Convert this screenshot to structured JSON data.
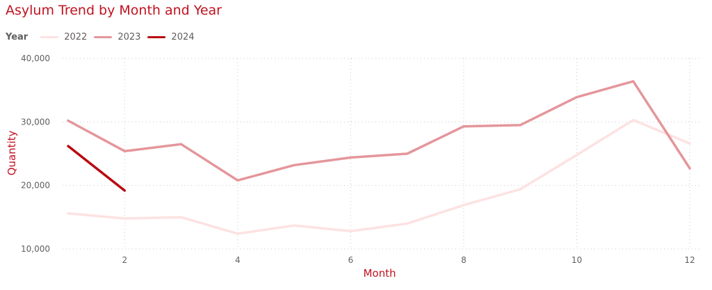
{
  "chart_data": {
    "type": "line",
    "title": "Asylum Trend by Month and Year",
    "xlabel": "Month",
    "ylabel": "Quantity",
    "legend_title": "Year",
    "legend_position": "top-left",
    "grid": true,
    "x": [
      1,
      2,
      3,
      4,
      5,
      6,
      7,
      8,
      9,
      10,
      11,
      12
    ],
    "x_ticks": [
      2,
      4,
      6,
      8,
      10,
      12
    ],
    "x_tick_labels": [
      "2",
      "4",
      "6",
      "8",
      "10",
      "12"
    ],
    "xlim": [
      1,
      12
    ],
    "y_ticks": [
      10000,
      20000,
      30000,
      40000
    ],
    "y_tick_labels": [
      "10,000",
      "20,000",
      "30,000",
      "40,000"
    ],
    "ylim": [
      10000,
      40000
    ],
    "series": [
      {
        "name": "2022",
        "color": "#fde2e2",
        "x": [
          1,
          2,
          3,
          4,
          5,
          6,
          7,
          8,
          9,
          10,
          11,
          12
        ],
        "values": [
          15600,
          14800,
          15000,
          12400,
          13700,
          12800,
          14000,
          16900,
          19400,
          24800,
          30300,
          26600
        ]
      },
      {
        "name": "2023",
        "color": "#e4969b",
        "x": [
          1,
          2,
          3,
          4,
          5,
          6,
          7,
          8,
          9,
          10,
          11,
          12
        ],
        "values": [
          30200,
          25400,
          26500,
          20800,
          23200,
          24400,
          25000,
          29300,
          29500,
          33900,
          36400,
          22700
        ]
      },
      {
        "name": "2024",
        "color": "#b7090f",
        "x": [
          1,
          2
        ],
        "values": [
          26200,
          19200
        ]
      }
    ]
  }
}
